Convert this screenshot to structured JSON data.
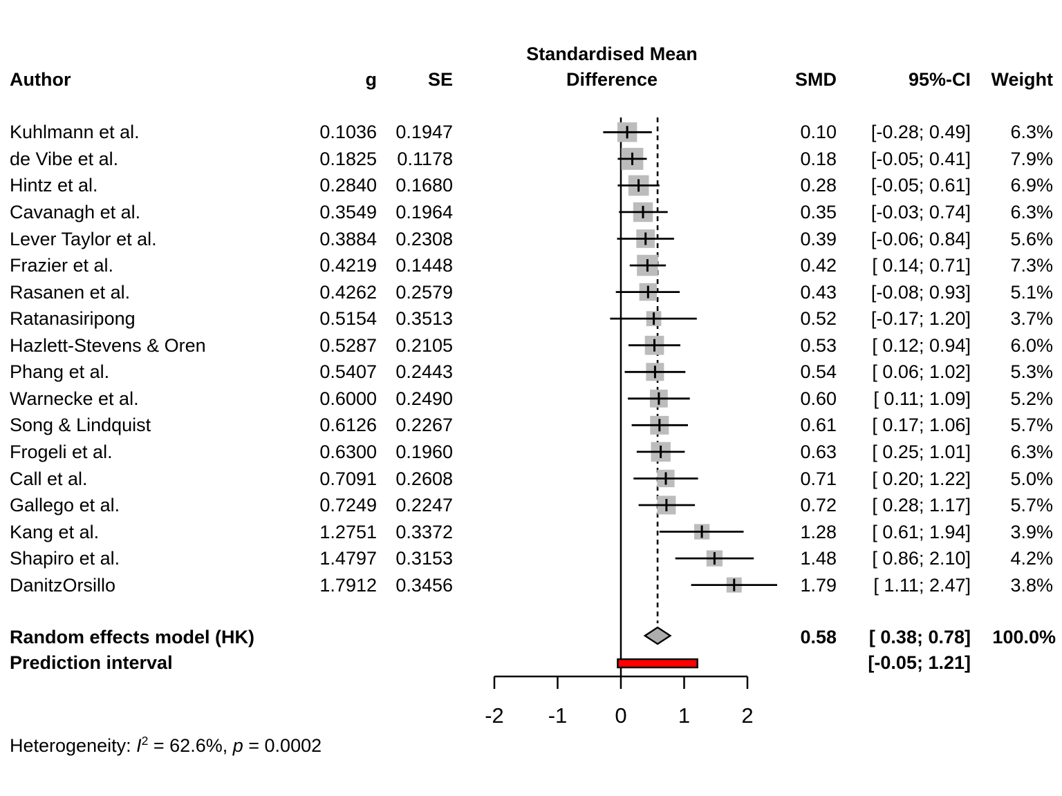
{
  "header": {
    "author": "Author",
    "g": "g",
    "se": "SE",
    "plot_title_line1": "Standardised Mean",
    "plot_title_line2": "Difference",
    "smd": "SMD",
    "ci": "95%-CI",
    "weight": "Weight"
  },
  "summary": {
    "label": "Random effects model (HK)",
    "smd": "0.58",
    "ci": "[ 0.38; 0.78]",
    "weight": "100.0%"
  },
  "prediction": {
    "label": "Prediction interval",
    "ci": "[-0.05; 1.21]"
  },
  "heterogeneity": {
    "prefix": "Heterogeneity: ",
    "stat": "I",
    "sup": "2",
    "mid": " = 62.6%, ",
    "pvar": "p",
    "end": " = 0.0002"
  },
  "colors": {
    "square": "#bcbcbc",
    "diamond": "#adadad",
    "prediction_bar": "#ff0000",
    "line": "#000000",
    "text": "#000000"
  },
  "chart_data": {
    "type": "scatter",
    "variant": "forest_plot",
    "title": "Standardised Mean Difference",
    "x_axis": {
      "tick_labels": [
        "-2",
        "-1",
        "0",
        "1",
        "2"
      ],
      "tick_values": [
        -2,
        -1,
        0,
        1,
        2
      ],
      "range": [
        -2,
        2
      ],
      "zero_reference_line": 0,
      "dashed_reference_line": 0.58
    },
    "studies": [
      {
        "author": "Kuhlmann et al.",
        "g": "0.1036",
        "se": "0.1947",
        "smd": "0.10",
        "ci": "[-0.28; 0.49]",
        "weight": "6.3%",
        "est": 0.1,
        "lower": -0.28,
        "upper": 0.49,
        "w": 6.3
      },
      {
        "author": "de Vibe et al.",
        "g": "0.1825",
        "se": "0.1178",
        "smd": "0.18",
        "ci": "[-0.05; 0.41]",
        "weight": "7.9%",
        "est": 0.18,
        "lower": -0.05,
        "upper": 0.41,
        "w": 7.9
      },
      {
        "author": "Hintz et al.",
        "g": "0.2840",
        "se": "0.1680",
        "smd": "0.28",
        "ci": "[-0.05; 0.61]",
        "weight": "6.9%",
        "est": 0.28,
        "lower": -0.05,
        "upper": 0.61,
        "w": 6.9
      },
      {
        "author": "Cavanagh et al.",
        "g": "0.3549",
        "se": "0.1964",
        "smd": "0.35",
        "ci": "[-0.03; 0.74]",
        "weight": "6.3%",
        "est": 0.35,
        "lower": -0.03,
        "upper": 0.74,
        "w": 6.3
      },
      {
        "author": "Lever Taylor et al.",
        "g": "0.3884",
        "se": "0.2308",
        "smd": "0.39",
        "ci": "[-0.06; 0.84]",
        "weight": "5.6%",
        "est": 0.39,
        "lower": -0.06,
        "upper": 0.84,
        "w": 5.6
      },
      {
        "author": "Frazier et al.",
        "g": "0.4219",
        "se": "0.1448",
        "smd": "0.42",
        "ci": "[ 0.14; 0.71]",
        "weight": "7.3%",
        "est": 0.42,
        "lower": 0.14,
        "upper": 0.71,
        "w": 7.3
      },
      {
        "author": "Rasanen et al.",
        "g": "0.4262",
        "se": "0.2579",
        "smd": "0.43",
        "ci": "[-0.08; 0.93]",
        "weight": "5.1%",
        "est": 0.43,
        "lower": -0.08,
        "upper": 0.93,
        "w": 5.1
      },
      {
        "author": "Ratanasiripong",
        "g": "0.5154",
        "se": "0.3513",
        "smd": "0.52",
        "ci": "[-0.17; 1.20]",
        "weight": "3.7%",
        "est": 0.52,
        "lower": -0.17,
        "upper": 1.2,
        "w": 3.7
      },
      {
        "author": "Hazlett-Stevens & Oren",
        "g": "0.5287",
        "se": "0.2105",
        "smd": "0.53",
        "ci": "[ 0.12; 0.94]",
        "weight": "6.0%",
        "est": 0.53,
        "lower": 0.12,
        "upper": 0.94,
        "w": 6.0
      },
      {
        "author": "Phang et al.",
        "g": "0.5407",
        "se": "0.2443",
        "smd": "0.54",
        "ci": "[ 0.06; 1.02]",
        "weight": "5.3%",
        "est": 0.54,
        "lower": 0.06,
        "upper": 1.02,
        "w": 5.3
      },
      {
        "author": "Warnecke et al.",
        "g": "0.6000",
        "se": "0.2490",
        "smd": "0.60",
        "ci": "[ 0.11; 1.09]",
        "weight": "5.2%",
        "est": 0.6,
        "lower": 0.11,
        "upper": 1.09,
        "w": 5.2
      },
      {
        "author": "Song & Lindquist",
        "g": "0.6126",
        "se": "0.2267",
        "smd": "0.61",
        "ci": "[ 0.17; 1.06]",
        "weight": "5.7%",
        "est": 0.61,
        "lower": 0.17,
        "upper": 1.06,
        "w": 5.7
      },
      {
        "author": "Frogeli et al.",
        "g": "0.6300",
        "se": "0.1960",
        "smd": "0.63",
        "ci": "[ 0.25; 1.01]",
        "weight": "6.3%",
        "est": 0.63,
        "lower": 0.25,
        "upper": 1.01,
        "w": 6.3
      },
      {
        "author": "Call et al.",
        "g": "0.7091",
        "se": "0.2608",
        "smd": "0.71",
        "ci": "[ 0.20; 1.22]",
        "weight": "5.0%",
        "est": 0.71,
        "lower": 0.2,
        "upper": 1.22,
        "w": 5.0
      },
      {
        "author": "Gallego et al.",
        "g": "0.7249",
        "se": "0.2247",
        "smd": "0.72",
        "ci": "[ 0.28; 1.17]",
        "weight": "5.7%",
        "est": 0.72,
        "lower": 0.28,
        "upper": 1.17,
        "w": 5.7
      },
      {
        "author": "Kang et al.",
        "g": "1.2751",
        "se": "0.3372",
        "smd": "1.28",
        "ci": "[ 0.61; 1.94]",
        "weight": "3.9%",
        "est": 1.28,
        "lower": 0.61,
        "upper": 1.94,
        "w": 3.9
      },
      {
        "author": "Shapiro et al.",
        "g": "1.4797",
        "se": "0.3153",
        "smd": "1.48",
        "ci": "[ 0.86; 2.10]",
        "weight": "4.2%",
        "est": 1.48,
        "lower": 0.86,
        "upper": 2.1,
        "w": 4.2
      },
      {
        "author": "DanitzOrsillo",
        "g": "1.7912",
        "se": "0.3456",
        "smd": "1.79",
        "ci": "[ 1.11; 2.47]",
        "weight": "3.8%",
        "est": 1.79,
        "lower": 1.11,
        "upper": 2.47,
        "w": 3.8
      }
    ],
    "pooled": {
      "label": "Random effects model (HK)",
      "est": 0.58,
      "lower": 0.38,
      "upper": 0.78,
      "smd": "0.58",
      "ci": "[ 0.38; 0.78]",
      "weight": "100.0%"
    },
    "prediction_interval": {
      "label": "Prediction interval",
      "lower": -0.05,
      "upper": 1.21,
      "ci": "[-0.05; 1.21]"
    },
    "heterogeneity": {
      "I2": "62.6%",
      "p": "0.0002"
    },
    "legend": "none",
    "grid": false
  }
}
